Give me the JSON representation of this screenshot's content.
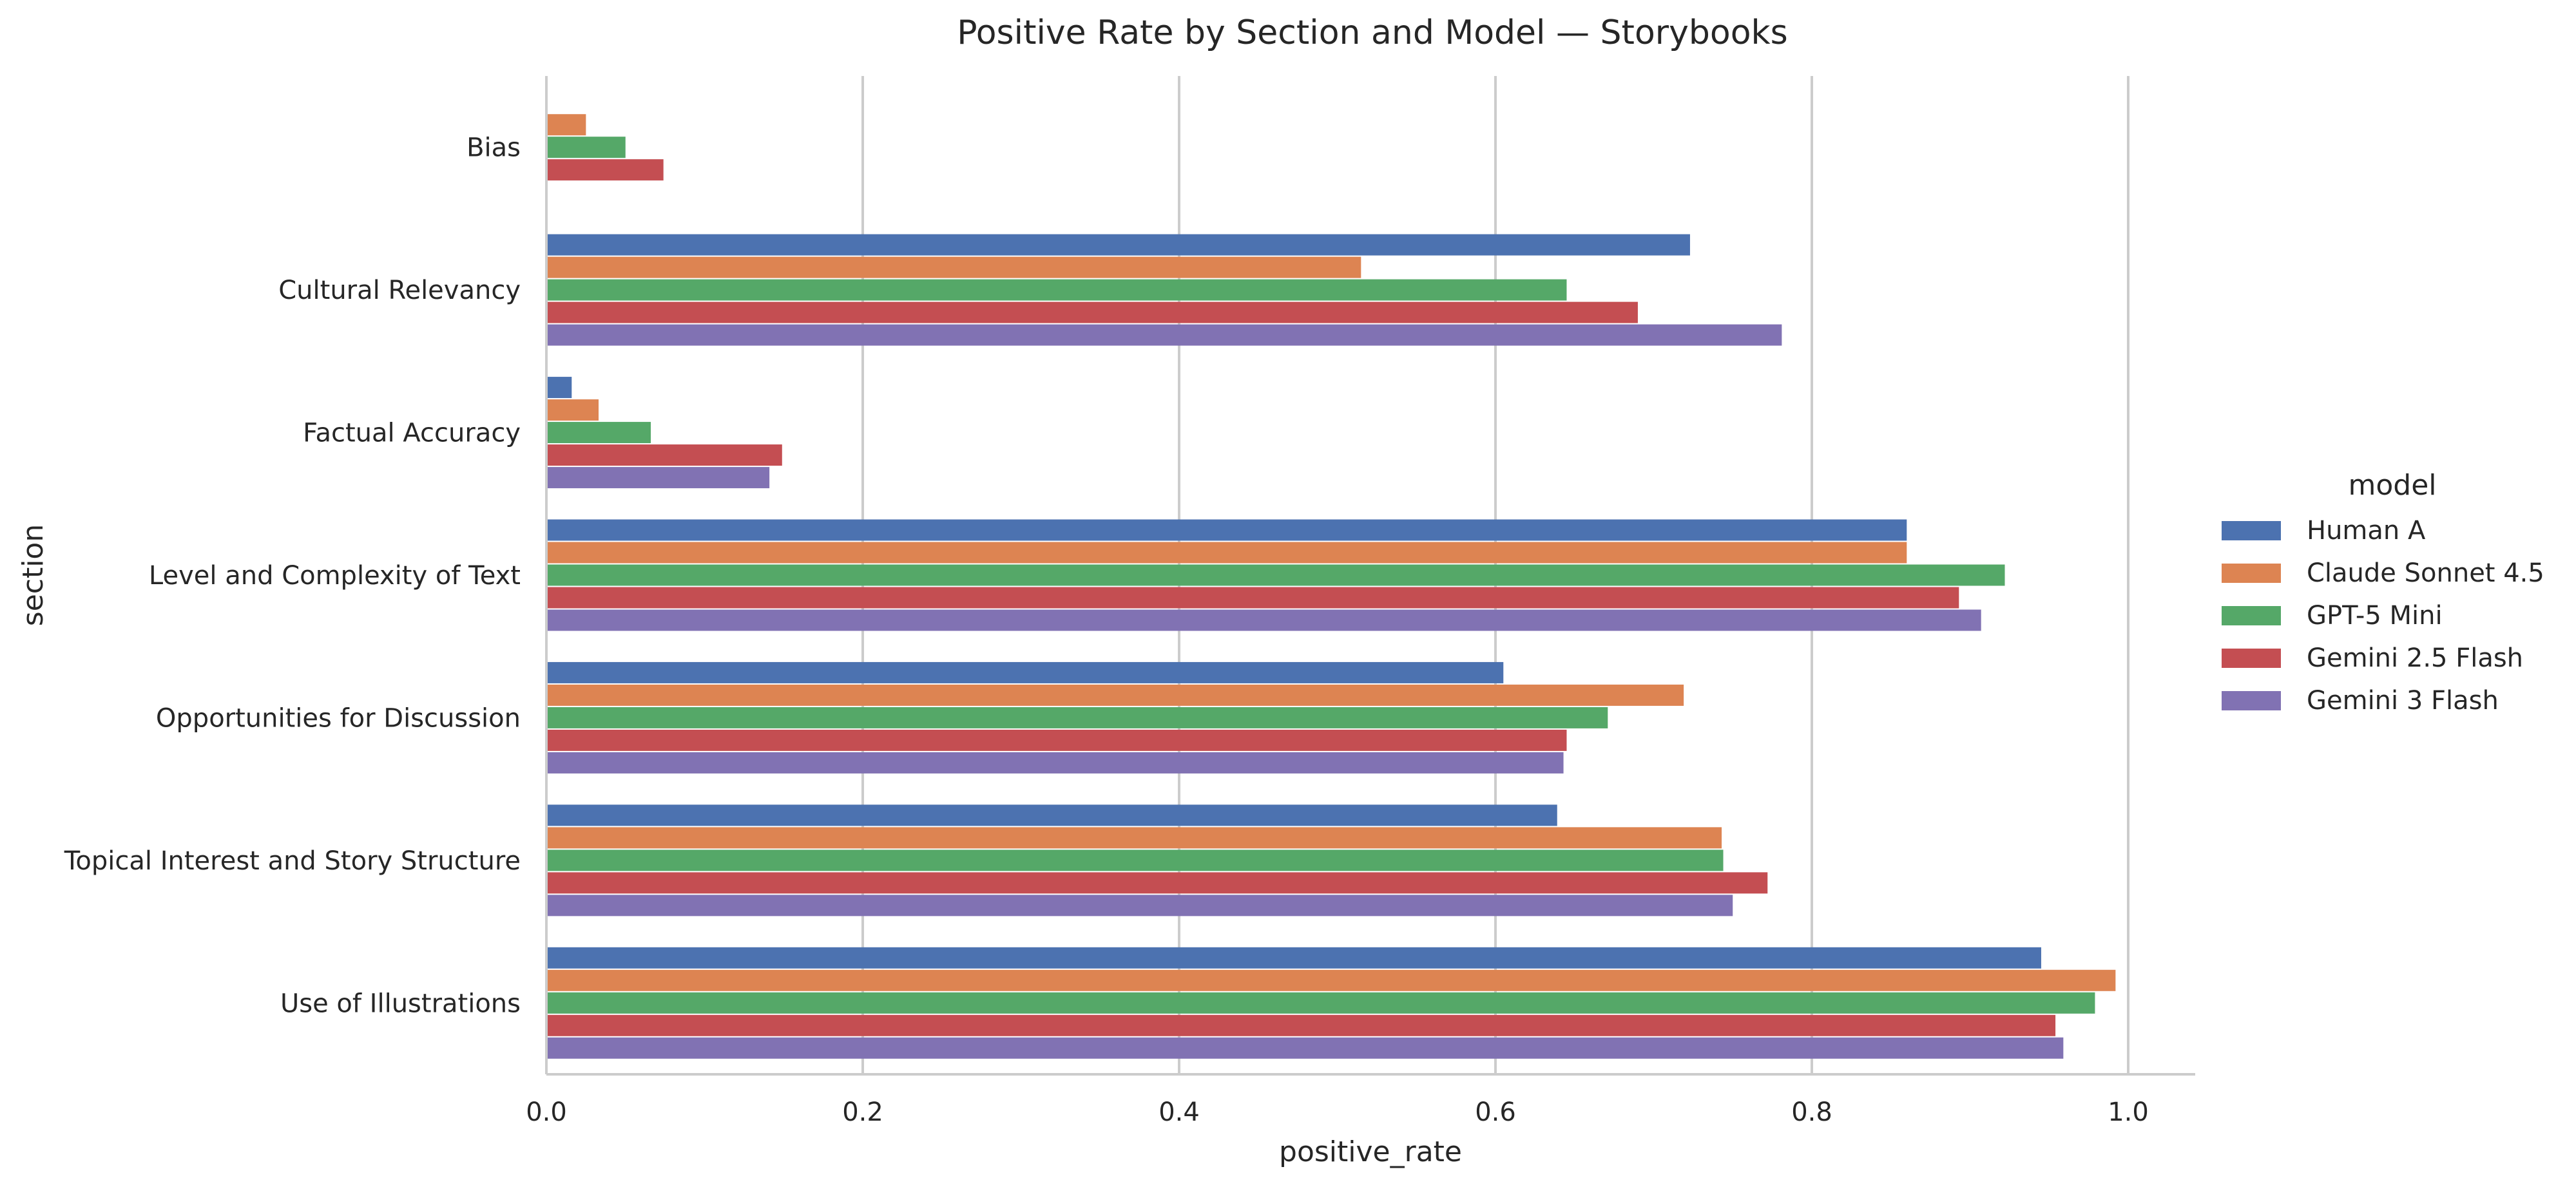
{
  "chart_data": {
    "type": "bar",
    "orientation": "horizontal",
    "title": "Positive Rate by Section and Model — Storybooks",
    "xlabel": "positive_rate",
    "ylabel": "section",
    "xlim": [
      0,
      1.04
    ],
    "x_ticks": [
      "0.0",
      "0.2",
      "0.4",
      "0.6",
      "0.8",
      "1.0"
    ],
    "grid": "vertical",
    "legend_title": "model",
    "legend_position": "right",
    "categories": [
      "Bias",
      "Cultural Relevancy",
      "Factual Accuracy",
      "Level and Complexity of Text",
      "Opportunities for Discussion",
      "Topical Interest and Story Structure",
      "Use of Illustrations"
    ],
    "series": [
      {
        "name": "Human A",
        "color": "#4c72b0",
        "values": [
          0.0,
          0.723,
          0.016,
          0.86,
          0.605,
          0.639,
          0.945
        ]
      },
      {
        "name": "Claude Sonnet 4.5",
        "color": "#dd8452",
        "values": [
          0.025,
          0.515,
          0.033,
          0.86,
          0.719,
          0.743,
          0.992
        ]
      },
      {
        "name": "GPT-5 Mini",
        "color": "#55a868",
        "values": [
          0.05,
          0.645,
          0.066,
          0.922,
          0.671,
          0.744,
          0.979
        ]
      },
      {
        "name": "Gemini 2.5 Flash",
        "color": "#c44e52",
        "values": [
          0.074,
          0.69,
          0.149,
          0.893,
          0.645,
          0.772,
          0.954
        ]
      },
      {
        "name": "Gemini 3 Flash",
        "color": "#8172b3",
        "values": [
          0.0,
          0.781,
          0.141,
          0.907,
          0.643,
          0.75,
          0.959
        ]
      }
    ]
  }
}
